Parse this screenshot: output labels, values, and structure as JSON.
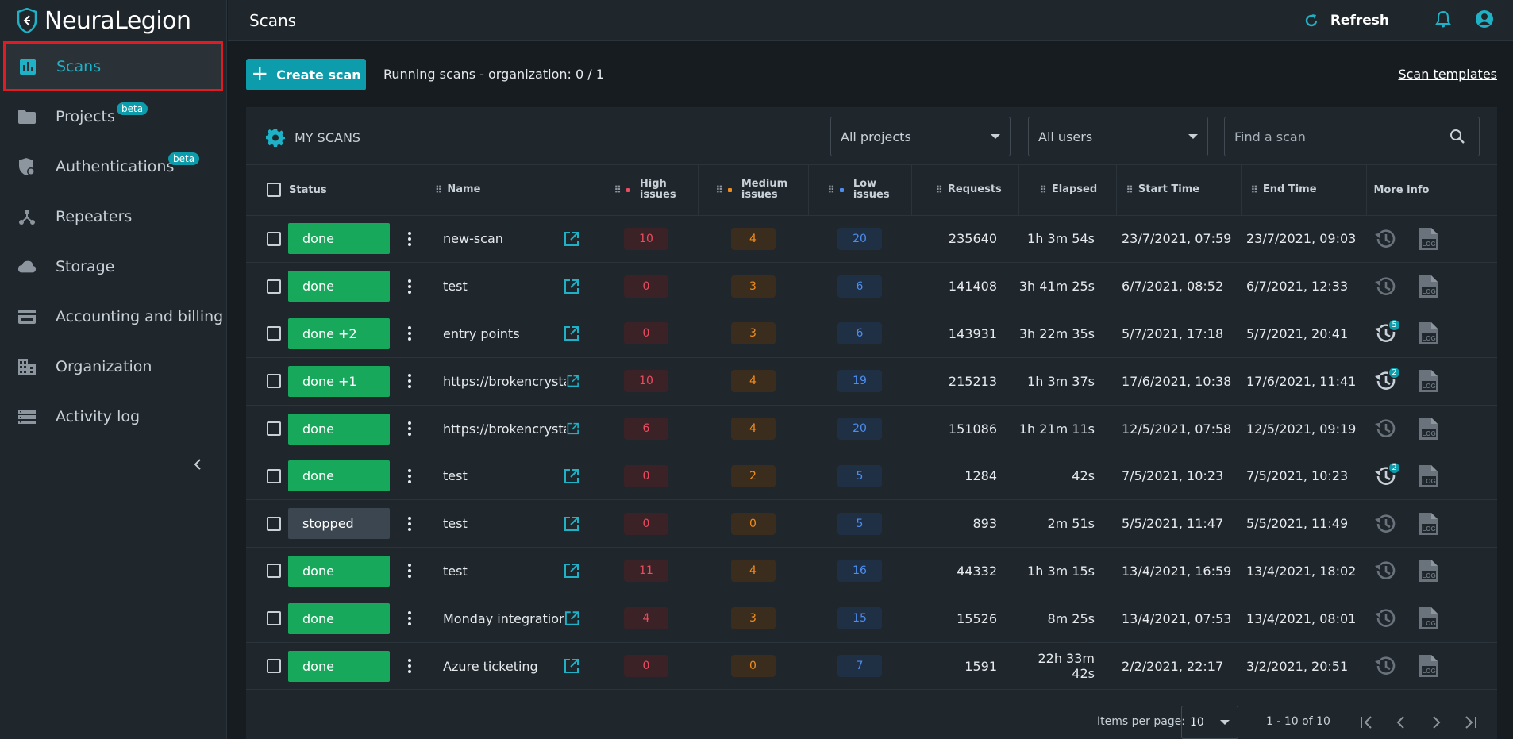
{
  "app": {
    "brand": "NeuraLegion",
    "page_title": "Scans"
  },
  "sidebar": {
    "items": [
      {
        "label": "Scans",
        "icon": "bar-chart-icon",
        "active": true,
        "badge": ""
      },
      {
        "label": "Projects",
        "icon": "folder-icon",
        "active": false,
        "badge": "beta"
      },
      {
        "label": "Authentications",
        "icon": "shield-lock-icon",
        "active": false,
        "badge": "beta"
      },
      {
        "label": "Repeaters",
        "icon": "repeater-network-icon",
        "active": false,
        "badge": ""
      },
      {
        "label": "Storage",
        "icon": "cloud-icon",
        "active": false,
        "badge": ""
      },
      {
        "label": "Accounting and billing",
        "icon": "credit-card-icon",
        "active": false,
        "badge": ""
      },
      {
        "label": "Organization",
        "icon": "building-icon",
        "active": false,
        "badge": ""
      },
      {
        "label": "Activity log",
        "icon": "list-icon",
        "active": false,
        "badge": ""
      }
    ]
  },
  "topbar": {
    "refresh_label": "Refresh"
  },
  "toolbar": {
    "create_label": "Create scan",
    "running_text": "Running scans - organization: 0 / 1",
    "templates_label": "Scan templates"
  },
  "filters": {
    "title": "MY SCANS",
    "projects_value": "All projects",
    "users_value": "All users",
    "search_placeholder": "Find a scan"
  },
  "table": {
    "columns": {
      "status": "Status",
      "name": "Name",
      "high": "High issues",
      "medium": "Medium issues",
      "low": "Low issues",
      "requests": "Requests",
      "elapsed": "Elapsed",
      "start": "Start Time",
      "end": "End Time",
      "more": "More info"
    },
    "rows": [
      {
        "status": "done",
        "name": "new-scan",
        "high": "10",
        "medium": "4",
        "low": "20",
        "requests": "235640",
        "elapsed": "1h 3m 54s",
        "start": "23/7/2021, 07:59",
        "end": "23/7/2021, 09:03",
        "history_count": ""
      },
      {
        "status": "done",
        "name": "test",
        "high": "0",
        "medium": "3",
        "low": "6",
        "requests": "141408",
        "elapsed": "3h 41m 25s",
        "start": "6/7/2021, 08:52",
        "end": "6/7/2021, 12:33",
        "history_count": ""
      },
      {
        "status": "done +2",
        "name": "entry points",
        "high": "0",
        "medium": "3",
        "low": "6",
        "requests": "143931",
        "elapsed": "3h 22m 35s",
        "start": "5/7/2021, 17:18",
        "end": "5/7/2021, 20:41",
        "history_count": "5"
      },
      {
        "status": "done +1",
        "name": "https://brokencrystals.…",
        "high": "10",
        "medium": "4",
        "low": "19",
        "requests": "215213",
        "elapsed": "1h 3m 37s",
        "start": "17/6/2021, 10:38",
        "end": "17/6/2021, 11:41",
        "history_count": "2"
      },
      {
        "status": "done",
        "name": "https://brokencrystals.…",
        "high": "6",
        "medium": "4",
        "low": "20",
        "requests": "151086",
        "elapsed": "1h 21m 11s",
        "start": "12/5/2021, 07:58",
        "end": "12/5/2021, 09:19",
        "history_count": ""
      },
      {
        "status": "done",
        "name": "test",
        "high": "0",
        "medium": "2",
        "low": "5",
        "requests": "1284",
        "elapsed": "42s",
        "start": "7/5/2021, 10:23",
        "end": "7/5/2021, 10:23",
        "history_count": "2"
      },
      {
        "status": "stopped",
        "name": "test",
        "high": "0",
        "medium": "0",
        "low": "5",
        "requests": "893",
        "elapsed": "2m 51s",
        "start": "5/5/2021, 11:47",
        "end": "5/5/2021, 11:49",
        "history_count": ""
      },
      {
        "status": "done",
        "name": "test",
        "high": "11",
        "medium": "4",
        "low": "16",
        "requests": "44332",
        "elapsed": "1h 3m 15s",
        "start": "13/4/2021, 16:59",
        "end": "13/4/2021, 18:02",
        "history_count": ""
      },
      {
        "status": "done",
        "name": "Monday integration",
        "high": "4",
        "medium": "3",
        "low": "15",
        "requests": "15526",
        "elapsed": "8m 25s",
        "start": "13/4/2021, 07:53",
        "end": "13/4/2021, 08:01",
        "history_count": ""
      },
      {
        "status": "done",
        "name": "Azure ticketing",
        "high": "0",
        "medium": "0",
        "low": "7",
        "requests": "1591",
        "elapsed": "22h 33m 42s",
        "start": "2/2/2021, 22:17",
        "end": "3/2/2021, 20:51",
        "history_count": ""
      }
    ]
  },
  "paginator": {
    "items_per_page_label": "Items per page:",
    "page_size": "10",
    "range_label": "1 - 10 of 10"
  },
  "colors": {
    "accent": "#0d9cab",
    "done": "#17a85b",
    "stopped": "#3c4650",
    "high": "#ea4d5f",
    "medium": "#f08c1e",
    "low": "#4d8df0"
  }
}
